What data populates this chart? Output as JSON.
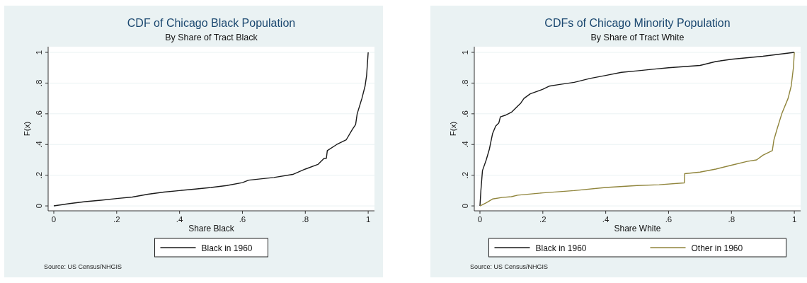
{
  "chart_data": [
    {
      "type": "line",
      "title": "CDF of Chicago Black Population",
      "subtitle": "By Share of Tract Black",
      "xlabel": "Share Black",
      "ylabel": "F(x)",
      "xlim": [
        -0.018,
        1.02
      ],
      "ylim": [
        -0.032,
        1.037
      ],
      "xticks": [
        {
          "value": 0,
          "label": "0"
        },
        {
          "value": 0.2,
          "label": ".2"
        },
        {
          "value": 0.4,
          "label": ".4"
        },
        {
          "value": 0.6,
          "label": ".6"
        },
        {
          "value": 0.8,
          "label": ".8"
        },
        {
          "value": 1,
          "label": "1"
        }
      ],
      "yticks": [
        {
          "value": 0,
          "label": "0"
        },
        {
          "value": 0.2,
          "label": ".2"
        },
        {
          "value": 0.4,
          "label": ".4"
        },
        {
          "value": 0.6,
          "label": ".6"
        },
        {
          "value": 0.8,
          "label": ".8"
        },
        {
          "value": 1,
          "label": "1"
        }
      ],
      "grid": "y",
      "legend": "bottom",
      "annotations": [
        "Source:  US Census/NHGIS"
      ],
      "series": [
        {
          "name": "Black in 1960",
          "color": "#1a1a1a",
          "x": [
            0,
            0.05,
            0.1,
            0.15,
            0.2,
            0.25,
            0.3,
            0.35,
            0.4,
            0.45,
            0.5,
            0.55,
            0.6,
            0.62,
            0.7,
            0.76,
            0.8,
            0.84,
            0.86,
            0.867,
            0.87,
            0.9,
            0.93,
            0.95,
            0.96,
            0.965,
            0.98,
            0.99,
            0.995,
            1
          ],
          "values": [
            0,
            0.015,
            0.028,
            0.037,
            0.048,
            0.058,
            0.076,
            0.09,
            0.1,
            0.11,
            0.12,
            0.133,
            0.152,
            0.168,
            0.185,
            0.205,
            0.24,
            0.27,
            0.31,
            0.31,
            0.36,
            0.4,
            0.43,
            0.5,
            0.53,
            0.6,
            0.7,
            0.78,
            0.85,
            1
          ]
        }
      ]
    },
    {
      "type": "line",
      "title": "CDFs of Chicago Minority Population",
      "subtitle": "By Share of Tract White",
      "xlabel": "Share White",
      "ylabel": "F(x)",
      "xlim": [
        -0.018,
        1.02
      ],
      "ylim": [
        -0.032,
        1.037
      ],
      "xticks": [
        {
          "value": 0,
          "label": "0"
        },
        {
          "value": 0.2,
          "label": ".2"
        },
        {
          "value": 0.4,
          "label": ".4"
        },
        {
          "value": 0.6,
          "label": ".6"
        },
        {
          "value": 0.8,
          "label": ".8"
        },
        {
          "value": 1,
          "label": "1"
        }
      ],
      "yticks": [
        {
          "value": 0,
          "label": "0"
        },
        {
          "value": 0.2,
          "label": ".2"
        },
        {
          "value": 0.4,
          "label": ".4"
        },
        {
          "value": 0.6,
          "label": ".6"
        },
        {
          "value": 0.8,
          "label": ".8"
        },
        {
          "value": 1,
          "label": "1"
        }
      ],
      "grid": "y",
      "legend": "bottom",
      "annotations": [
        "Source:  US Census/NHGIS"
      ],
      "series": [
        {
          "name": "Black in 1960",
          "color": "#1a1a1a",
          "x": [
            0,
            0.003,
            0.008,
            0.02,
            0.03,
            0.035,
            0.04,
            0.05,
            0.06,
            0.065,
            0.08,
            0.1,
            0.12,
            0.13,
            0.14,
            0.16,
            0.2,
            0.22,
            0.25,
            0.3,
            0.35,
            0.4,
            0.45,
            0.5,
            0.55,
            0.6,
            0.7,
            0.75,
            0.8,
            0.9,
            1
          ],
          "values": [
            0,
            0.1,
            0.23,
            0.3,
            0.37,
            0.42,
            0.47,
            0.52,
            0.54,
            0.58,
            0.59,
            0.61,
            0.65,
            0.67,
            0.7,
            0.73,
            0.76,
            0.78,
            0.79,
            0.805,
            0.83,
            0.85,
            0.87,
            0.88,
            0.89,
            0.9,
            0.915,
            0.94,
            0.955,
            0.975,
            1
          ]
        },
        {
          "name": "Other in 1960",
          "color": "#90853c",
          "x": [
            0,
            0.02,
            0.04,
            0.07,
            0.1,
            0.12,
            0.2,
            0.3,
            0.4,
            0.5,
            0.57,
            0.65,
            0.651,
            0.7,
            0.75,
            0.8,
            0.85,
            0.88,
            0.9,
            0.93,
            0.935,
            0.945,
            0.96,
            0.98,
            0.99,
            0.997,
            1
          ],
          "values": [
            0,
            0.02,
            0.045,
            0.055,
            0.06,
            0.07,
            0.085,
            0.1,
            0.12,
            0.133,
            0.138,
            0.15,
            0.21,
            0.22,
            0.24,
            0.265,
            0.29,
            0.3,
            0.33,
            0.36,
            0.43,
            0.5,
            0.6,
            0.7,
            0.78,
            0.9,
            1
          ]
        }
      ]
    }
  ]
}
